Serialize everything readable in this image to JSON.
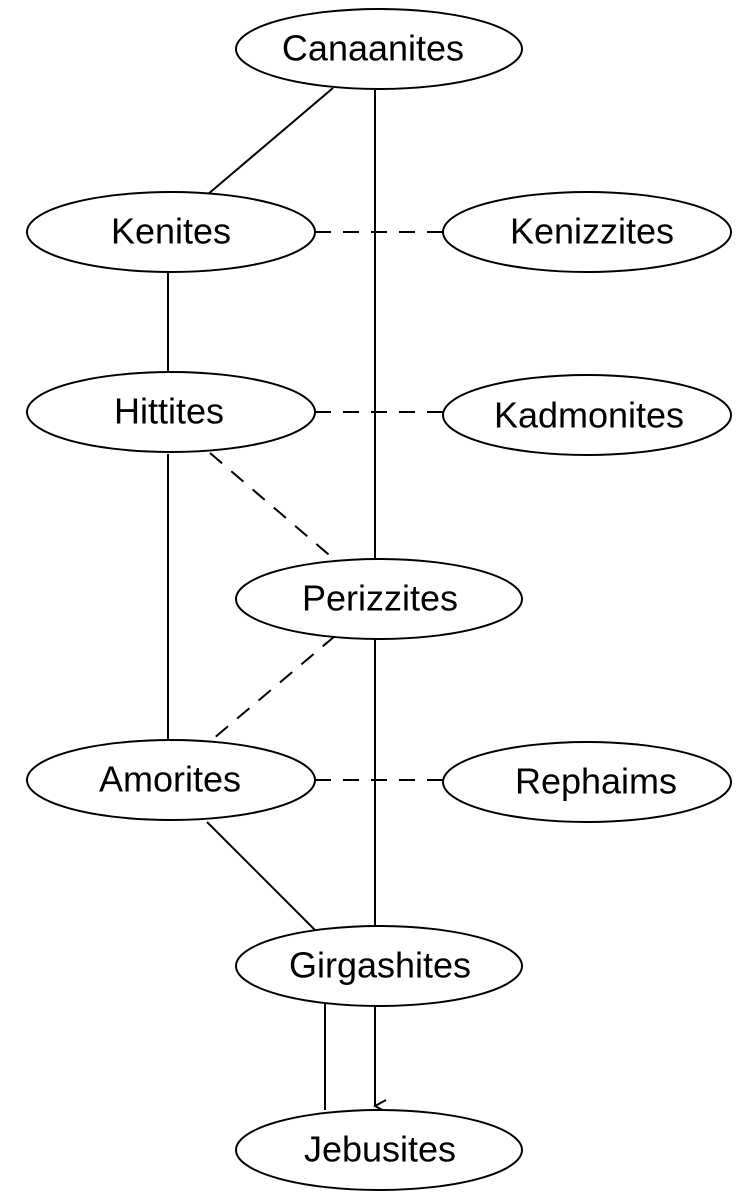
{
  "diagram": {
    "nodes": [
      {
        "id": "canaanites",
        "label": "Canaanites"
      },
      {
        "id": "kenites",
        "label": "Kenites"
      },
      {
        "id": "kenizzites",
        "label": "Kenizzites"
      },
      {
        "id": "hittites",
        "label": "Hittites"
      },
      {
        "id": "kadmonites",
        "label": "Kadmonites"
      },
      {
        "id": "perizzites",
        "label": "Perizzites"
      },
      {
        "id": "amorites",
        "label": "Amorites"
      },
      {
        "id": "rephaims",
        "label": "Rephaims"
      },
      {
        "id": "girgashites",
        "label": "Girgashites"
      },
      {
        "id": "jebusites",
        "label": "Jebusites"
      }
    ],
    "edges": [
      {
        "from": "canaanites",
        "to": "kenites",
        "style": "solid"
      },
      {
        "from": "canaanites",
        "to": "perizzites",
        "style": "solid"
      },
      {
        "from": "kenites",
        "to": "kenizzites",
        "style": "dashed"
      },
      {
        "from": "kenites",
        "to": "hittites",
        "style": "solid"
      },
      {
        "from": "hittites",
        "to": "kadmonites",
        "style": "dashed"
      },
      {
        "from": "hittites",
        "to": "perizzites",
        "style": "dashed"
      },
      {
        "from": "hittites",
        "to": "amorites",
        "style": "solid"
      },
      {
        "from": "perizzites",
        "to": "amorites",
        "style": "dashed"
      },
      {
        "from": "perizzites",
        "to": "girgashites",
        "style": "solid"
      },
      {
        "from": "amorites",
        "to": "rephaims",
        "style": "dashed"
      },
      {
        "from": "amorites",
        "to": "girgashites",
        "style": "solid"
      },
      {
        "from": "girgashites",
        "to": "jebusites",
        "style": "solid"
      },
      {
        "from": "girgashites",
        "to": "jebusites",
        "style": "arrow"
      }
    ]
  }
}
